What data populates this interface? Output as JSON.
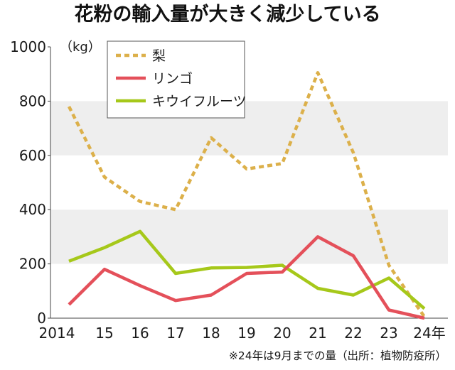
{
  "chart_data": {
    "type": "line",
    "title": "花粉の輸入量が大きく減少している",
    "y_unit_label": "（kg）",
    "x": [
      2014,
      2015,
      2016,
      2017,
      2018,
      2019,
      2020,
      2021,
      2022,
      2023,
      2024
    ],
    "x_tick_labels": [
      "2014",
      "15",
      "16",
      "17",
      "18",
      "19",
      "20",
      "21",
      "22",
      "23",
      "24年"
    ],
    "ylim": [
      0,
      1000
    ],
    "y_ticks": [
      0,
      200,
      400,
      600,
      800,
      1000
    ],
    "y_tick_labels": [
      "0",
      "200",
      "400",
      "600",
      "800",
      "1000"
    ],
    "grid": "alternating horizontal bands",
    "legend_position": "top-left",
    "series": [
      {
        "name": "梨",
        "color": "#dcb04a",
        "style": "dotted",
        "values": [
          780,
          520,
          430,
          400,
          665,
          550,
          570,
          905,
          610,
          195,
          5
        ]
      },
      {
        "name": "リンゴ",
        "color": "#e4505a",
        "style": "solid",
        "values": [
          50,
          180,
          120,
          65,
          85,
          165,
          170,
          300,
          230,
          30,
          0
        ]
      },
      {
        "name": "キウイフルーツ",
        "color": "#a6c81a",
        "style": "solid",
        "values": [
          210,
          260,
          320,
          165,
          185,
          187,
          195,
          110,
          85,
          148,
          35
        ]
      }
    ],
    "footnote": "※24年は9月までの量（出所：植物防疫所）"
  }
}
